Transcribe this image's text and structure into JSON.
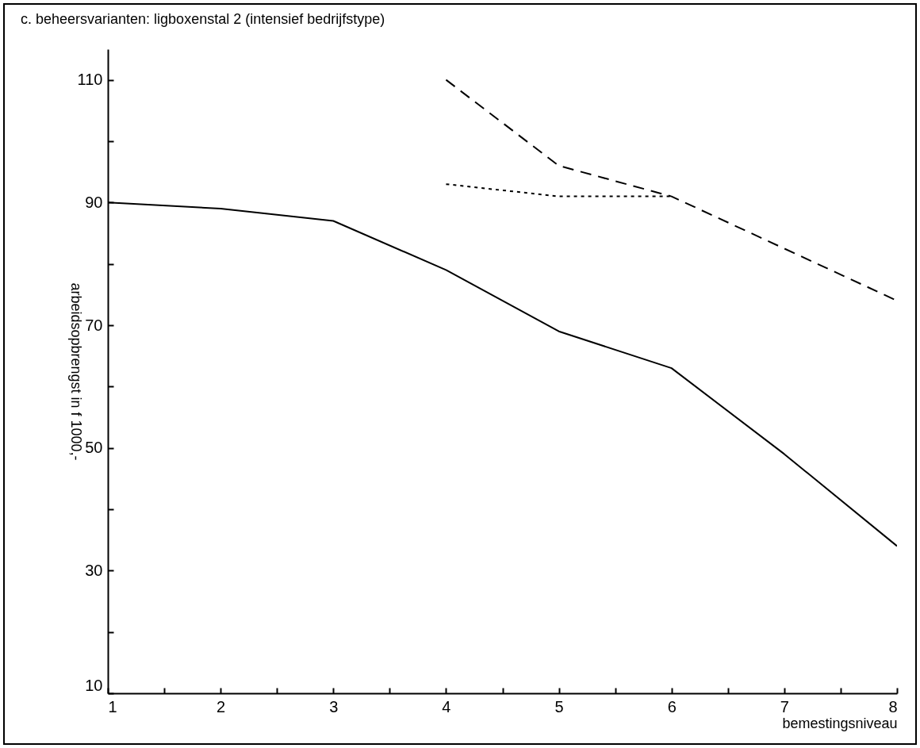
{
  "chart_data": {
    "type": "line",
    "title": "c. beheersvarianten: ligboxenstal 2 (intensief bedrijfstype)",
    "xlabel": "bemestingsniveau",
    "ylabel": "arbeidsopbrengst in f 1000,-",
    "xlim": [
      1,
      8
    ],
    "xticks": [
      1,
      {
        "value": 1.5,
        "label": null
      },
      2,
      {
        "value": 2.5,
        "label": null
      },
      3,
      {
        "value": 3.5,
        "label": null
      },
      4,
      {
        "value": 4.5,
        "label": null
      },
      5,
      {
        "value": 5.5,
        "label": null
      },
      6,
      {
        "value": 6.5,
        "label": null
      },
      7,
      {
        "value": 7.5,
        "label": null
      },
      8
    ],
    "ylim": [
      10,
      115
    ],
    "yticks": [
      10,
      {
        "value": 20,
        "label": null
      },
      30,
      {
        "value": 40,
        "label": null
      },
      50,
      {
        "value": 60,
        "label": null
      },
      70,
      {
        "value": 80,
        "label": null
      },
      90,
      {
        "value": 100,
        "label": null
      },
      110
    ],
    "grid": false,
    "series": [
      {
        "color": "#000000",
        "line_style": "solid",
        "x": [
          1,
          2,
          3,
          4,
          5,
          6,
          7,
          8
        ],
        "values": [
          90,
          89,
          87,
          79,
          69,
          63,
          49,
          34
        ]
      },
      {
        "color": "#000000",
        "line_style": "dashed",
        "x": [
          4,
          5,
          6,
          8
        ],
        "values": [
          110,
          96,
          91,
          74
        ]
      },
      {
        "color": "#000000",
        "line_style": "dotted",
        "x": [
          4,
          5,
          6
        ],
        "values": [
          93,
          91,
          91
        ]
      }
    ]
  }
}
